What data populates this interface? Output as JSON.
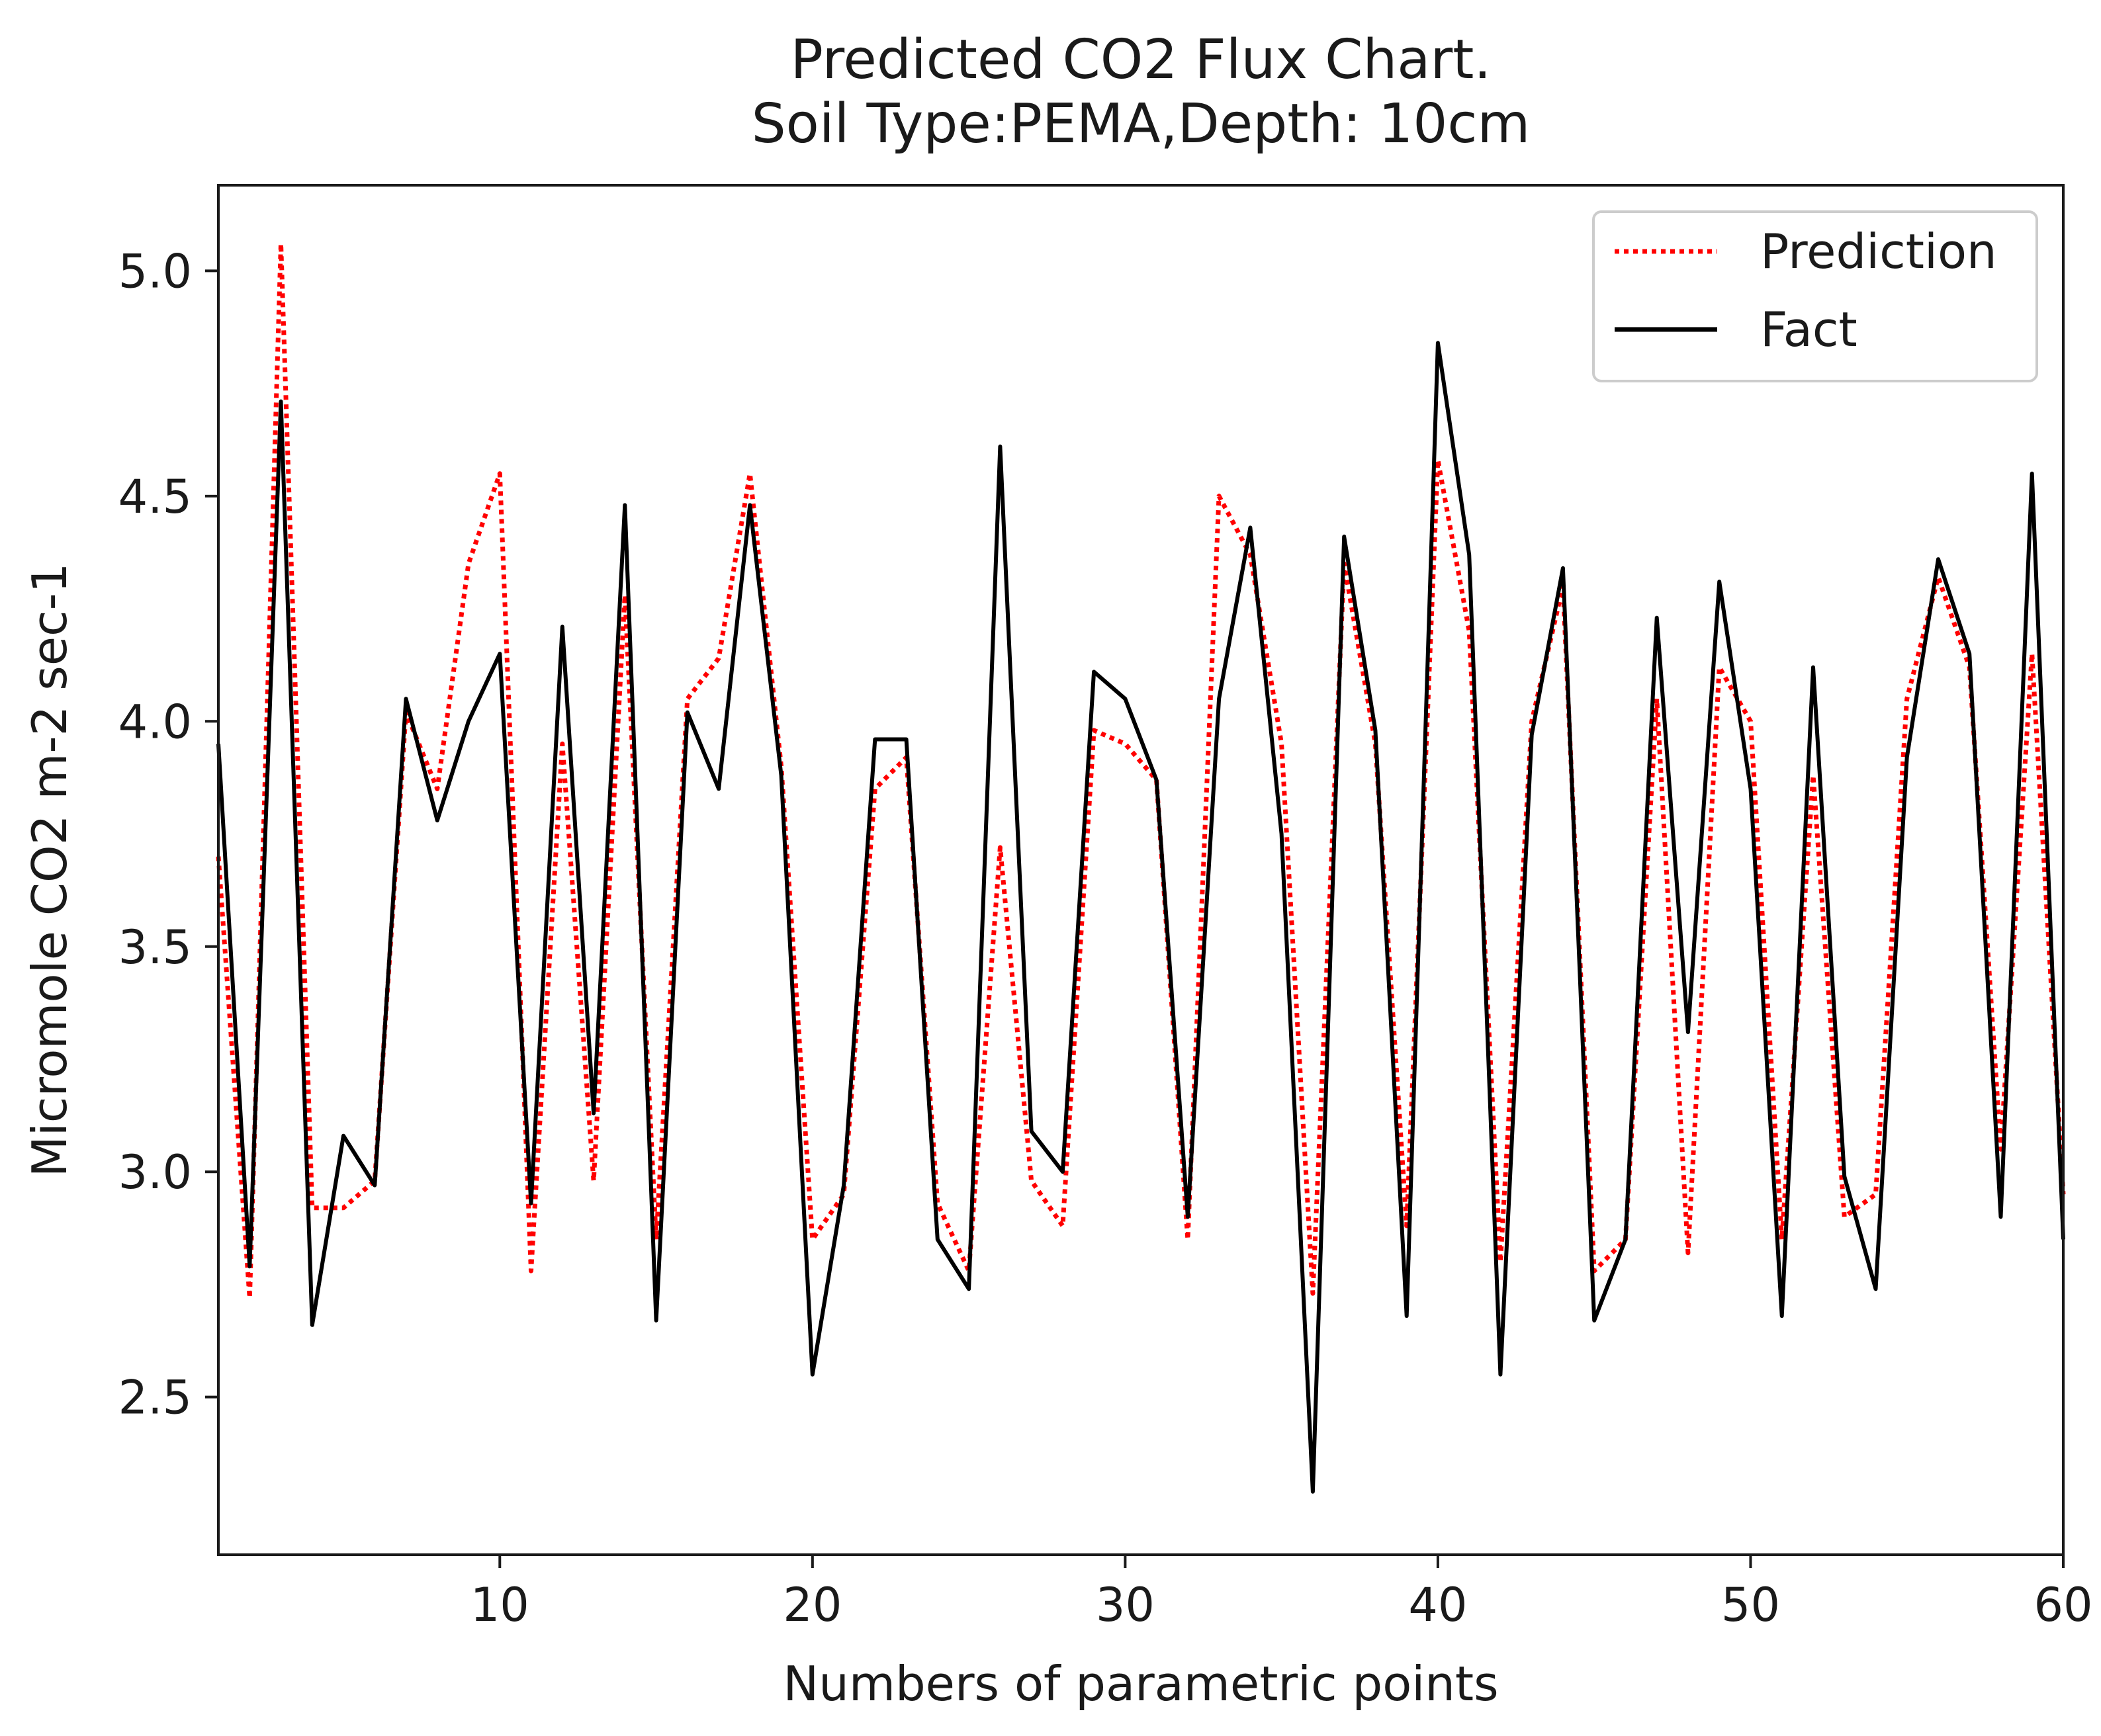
{
  "chart_data": {
    "type": "line",
    "title": "Predicted CO2 Flux Chart.",
    "subtitle": "Soil Type:PEMA,Depth: 10cm",
    "xlabel": "Numbers of parametric points",
    "ylabel": "Micromole CO2 m-2 sec-1",
    "xlim": [
      1,
      60
    ],
    "ylim": [
      2.15,
      5.19
    ],
    "x_ticks": [
      10,
      20,
      30,
      40,
      50,
      60
    ],
    "y_ticks": [
      2.5,
      3.0,
      3.5,
      4.0,
      4.5,
      5.0
    ],
    "y_tick_labels": [
      "2.5",
      "3.0",
      "3.5",
      "4.0",
      "4.5",
      "5.0"
    ],
    "grid": false,
    "legend_position": "top-right",
    "x": [
      1,
      2,
      3,
      4,
      5,
      6,
      7,
      8,
      9,
      10,
      11,
      12,
      13,
      14,
      15,
      16,
      17,
      18,
      19,
      20,
      21,
      22,
      23,
      24,
      25,
      26,
      27,
      28,
      29,
      30,
      31,
      32,
      33,
      34,
      35,
      36,
      37,
      38,
      39,
      40,
      41,
      42,
      43,
      44,
      45,
      46,
      47,
      48,
      49,
      50,
      51,
      52,
      53,
      54,
      55,
      56,
      57,
      58,
      59,
      60
    ],
    "series": [
      {
        "name": "Prediction",
        "color": "#ff0000",
        "style": "dotted",
        "values": [
          3.7,
          2.72,
          5.06,
          2.92,
          2.92,
          2.98,
          4.02,
          3.85,
          4.35,
          4.55,
          2.78,
          3.95,
          2.98,
          4.28,
          2.85,
          4.05,
          4.14,
          4.55,
          3.9,
          2.85,
          2.95,
          3.85,
          3.92,
          2.93,
          2.78,
          3.72,
          2.98,
          2.88,
          3.98,
          3.95,
          3.87,
          2.85,
          4.5,
          4.37,
          3.95,
          2.73,
          4.35,
          3.95,
          2.88,
          4.58,
          4.2,
          2.8,
          4.0,
          4.3,
          2.78,
          2.85,
          4.05,
          2.82,
          4.12,
          4.0,
          2.85,
          3.88,
          2.9,
          2.95,
          4.05,
          4.32,
          4.12,
          3.05,
          4.15,
          2.95
        ]
      },
      {
        "name": "Fact",
        "color": "#000000",
        "style": "solid",
        "values": [
          3.95,
          2.79,
          4.71,
          2.66,
          3.08,
          2.97,
          4.05,
          3.78,
          4.0,
          4.15,
          2.93,
          4.21,
          3.13,
          4.48,
          2.67,
          4.02,
          3.85,
          4.48,
          3.88,
          2.55,
          2.97,
          3.96,
          3.96,
          2.85,
          2.74,
          4.61,
          3.09,
          3.0,
          4.11,
          4.05,
          3.87,
          2.9,
          4.05,
          4.43,
          3.75,
          2.29,
          4.41,
          3.98,
          2.68,
          4.84,
          4.37,
          2.55,
          3.97,
          4.34,
          2.67,
          2.85,
          4.23,
          3.31,
          4.31,
          3.85,
          2.68,
          4.12,
          2.99,
          2.74,
          3.92,
          4.36,
          4.15,
          2.9,
          4.55,
          2.85
        ]
      }
    ]
  }
}
